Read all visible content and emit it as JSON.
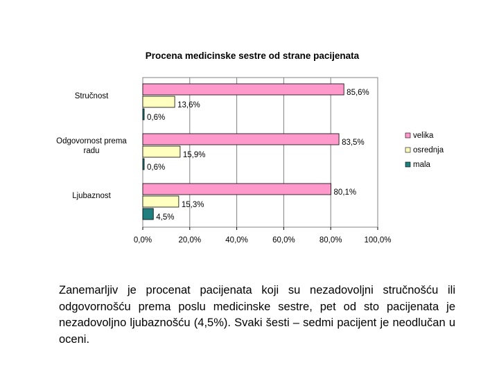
{
  "chart_data": {
    "type": "bar",
    "orientation": "horizontal",
    "title": "Procena medicinske sestre od strane pacijenata",
    "categories": [
      "Stručnost",
      "Odgovornost prema radu",
      "Ljubaznost"
    ],
    "category_label_lines": [
      [
        "Stručnost"
      ],
      [
        "Odgovornost prema",
        "radu"
      ],
      [
        "Ljubaznost"
      ]
    ],
    "series": [
      {
        "name": "velika",
        "color": "#ff99cc",
        "values": [
          85.6,
          83.5,
          80.1
        ],
        "labels": [
          "85,6%",
          "83,5%",
          "80,1%"
        ]
      },
      {
        "name": "osrednja",
        "color": "#ffffc0",
        "values": [
          13.6,
          15.9,
          15.3
        ],
        "labels": [
          "13,6%",
          "15,9%",
          "15,3%"
        ]
      },
      {
        "name": "mala",
        "color": "#1f7f7f",
        "values": [
          0.6,
          0.6,
          4.5
        ],
        "labels": [
          "0,6%",
          "0,6%",
          "4,5%"
        ]
      }
    ],
    "xlim": [
      0,
      100
    ],
    "xticks": [
      0,
      20,
      40,
      60,
      80,
      100
    ],
    "xtick_labels": [
      "0,0%",
      "20,0%",
      "40,0%",
      "60,0%",
      "80,0%",
      "100,0%"
    ],
    "grid": true,
    "legend": "right"
  },
  "caption": "Zanemarljiv je procenat pacijenata koji su nezadovoljni stručnošću ili odgovornošću prema poslu medicinske sestre, pet od sto pacijenata je nezadovoljno ljubaznošću (4,5%). Svaki šesti – sedmi pacijent je neodlučan u oceni."
}
